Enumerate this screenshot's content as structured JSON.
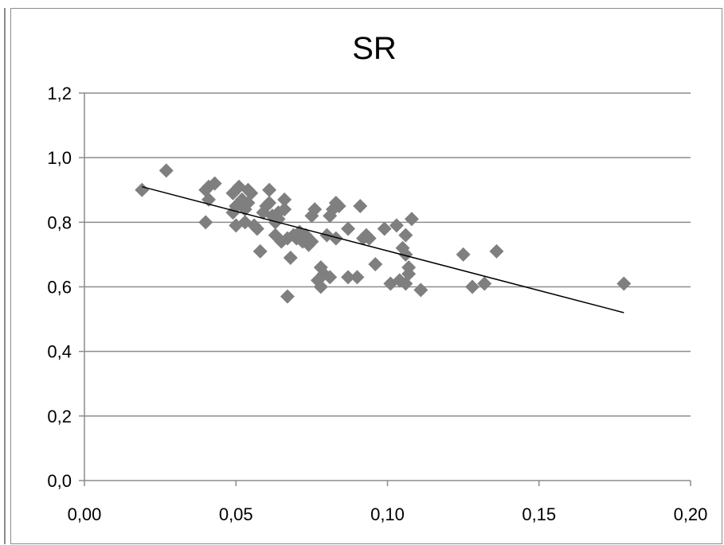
{
  "chart_data": {
    "type": "scatter",
    "title": "SR",
    "xlabel": "",
    "ylabel": "",
    "xlim": [
      0.0,
      0.2
    ],
    "ylim": [
      0.0,
      1.2
    ],
    "x_ticks": [
      0.0,
      0.05,
      0.1,
      0.15,
      0.2
    ],
    "y_ticks": [
      0.0,
      0.2,
      0.4,
      0.6,
      0.8,
      1.0,
      1.2
    ],
    "x_tick_labels": [
      "0,00",
      "0,05",
      "0,10",
      "0,15",
      "0,20"
    ],
    "y_tick_labels": [
      "0,0",
      "0,2",
      "0,4",
      "0,6",
      "0,8",
      "1,0",
      "1,2"
    ],
    "grid": "horizontal",
    "legend": "none",
    "marker_color": "#7f7f7f",
    "trendline_color": "#000000",
    "gridline_color": "#8c8c8c",
    "points": [
      [
        0.019,
        0.9
      ],
      [
        0.027,
        0.96
      ],
      [
        0.04,
        0.9
      ],
      [
        0.04,
        0.8
      ],
      [
        0.041,
        0.87
      ],
      [
        0.041,
        0.91
      ],
      [
        0.043,
        0.92
      ],
      [
        0.049,
        0.83
      ],
      [
        0.049,
        0.89
      ],
      [
        0.05,
        0.79
      ],
      [
        0.05,
        0.85
      ],
      [
        0.051,
        0.91
      ],
      [
        0.052,
        0.87
      ],
      [
        0.053,
        0.84
      ],
      [
        0.053,
        0.8
      ],
      [
        0.054,
        0.9
      ],
      [
        0.054,
        0.86
      ],
      [
        0.055,
        0.89
      ],
      [
        0.056,
        0.79
      ],
      [
        0.057,
        0.78
      ],
      [
        0.058,
        0.71
      ],
      [
        0.059,
        0.83
      ],
      [
        0.06,
        0.85
      ],
      [
        0.061,
        0.9
      ],
      [
        0.061,
        0.86
      ],
      [
        0.062,
        0.82
      ],
      [
        0.063,
        0.8
      ],
      [
        0.063,
        0.76
      ],
      [
        0.064,
        0.83
      ],
      [
        0.064,
        0.81
      ],
      [
        0.065,
        0.74
      ],
      [
        0.066,
        0.87
      ],
      [
        0.066,
        0.84
      ],
      [
        0.067,
        0.57
      ],
      [
        0.067,
        0.75
      ],
      [
        0.068,
        0.69
      ],
      [
        0.069,
        0.76
      ],
      [
        0.07,
        0.75
      ],
      [
        0.071,
        0.77
      ],
      [
        0.072,
        0.74
      ],
      [
        0.073,
        0.76
      ],
      [
        0.074,
        0.73
      ],
      [
        0.075,
        0.74
      ],
      [
        0.075,
        0.82
      ],
      [
        0.076,
        0.84
      ],
      [
        0.077,
        0.62
      ],
      [
        0.078,
        0.66
      ],
      [
        0.078,
        0.6
      ],
      [
        0.079,
        0.64
      ],
      [
        0.08,
        0.76
      ],
      [
        0.081,
        0.63
      ],
      [
        0.081,
        0.82
      ],
      [
        0.082,
        0.84
      ],
      [
        0.083,
        0.86
      ],
      [
        0.083,
        0.75
      ],
      [
        0.084,
        0.85
      ],
      [
        0.087,
        0.78
      ],
      [
        0.087,
        0.63
      ],
      [
        0.09,
        0.63
      ],
      [
        0.091,
        0.85
      ],
      [
        0.092,
        0.75
      ],
      [
        0.093,
        0.76
      ],
      [
        0.094,
        0.75
      ],
      [
        0.096,
        0.67
      ],
      [
        0.099,
        0.78
      ],
      [
        0.101,
        0.61
      ],
      [
        0.103,
        0.79
      ],
      [
        0.104,
        0.62
      ],
      [
        0.105,
        0.72
      ],
      [
        0.106,
        0.7
      ],
      [
        0.106,
        0.76
      ],
      [
        0.106,
        0.61
      ],
      [
        0.107,
        0.64
      ],
      [
        0.107,
        0.66
      ],
      [
        0.108,
        0.81
      ],
      [
        0.111,
        0.59
      ],
      [
        0.125,
        0.7
      ],
      [
        0.128,
        0.6
      ],
      [
        0.132,
        0.61
      ],
      [
        0.136,
        0.71
      ],
      [
        0.178,
        0.61
      ]
    ],
    "trendline": [
      [
        0.019,
        0.91
      ],
      [
        0.178,
        0.52
      ]
    ]
  }
}
